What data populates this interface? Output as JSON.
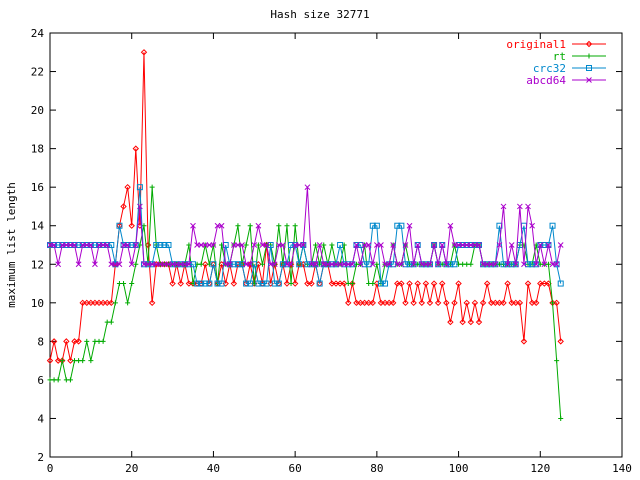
{
  "chart_data": {
    "type": "line",
    "title": "Hash size 32771",
    "xlabel": "",
    "ylabel": "maximum list length",
    "xlim": [
      0,
      140
    ],
    "ylim": [
      2,
      24
    ],
    "xticks": [
      0,
      20,
      40,
      60,
      80,
      100,
      120,
      140
    ],
    "yticks": [
      2,
      4,
      6,
      8,
      10,
      12,
      14,
      16,
      18,
      20,
      22,
      24
    ],
    "grid": false,
    "legend_position": "top-right",
    "x": [
      0,
      1,
      2,
      3,
      4,
      5,
      6,
      7,
      8,
      9,
      10,
      11,
      12,
      13,
      14,
      15,
      16,
      17,
      18,
      19,
      20,
      21,
      22,
      23,
      24,
      25,
      26,
      27,
      28,
      29,
      30,
      31,
      32,
      33,
      34,
      35,
      36,
      37,
      38,
      39,
      40,
      41,
      42,
      43,
      44,
      45,
      46,
      47,
      48,
      49,
      50,
      51,
      52,
      53,
      54,
      55,
      56,
      57,
      58,
      59,
      60,
      61,
      62,
      63,
      64,
      65,
      66,
      67,
      68,
      69,
      70,
      71,
      72,
      73,
      74,
      75,
      76,
      77,
      78,
      79,
      80,
      81,
      82,
      83,
      84,
      85,
      86,
      87,
      88,
      89,
      90,
      91,
      92,
      93,
      94,
      95,
      96,
      97,
      98,
      99,
      100,
      101,
      102,
      103,
      104,
      105,
      106,
      107,
      108,
      109,
      110,
      111,
      112,
      113,
      114,
      115,
      116,
      117,
      118,
      119,
      120,
      121,
      122,
      123,
      124,
      125
    ],
    "series": [
      {
        "name": "original1",
        "color": "#ff0000",
        "marker": "diamond",
        "values": [
          7,
          8,
          7,
          7,
          8,
          7,
          8,
          8,
          10,
          10,
          10,
          10,
          10,
          10,
          10,
          10,
          12,
          14,
          15,
          16,
          14,
          18,
          14,
          23,
          13,
          10,
          12,
          12,
          12,
          12,
          11,
          12,
          11,
          12,
          11,
          11,
          11,
          11,
          12,
          11,
          12,
          11,
          12,
          11,
          12,
          11,
          12,
          12,
          11,
          12,
          11,
          12,
          11,
          13,
          11,
          12,
          11,
          12,
          11,
          12,
          11,
          12,
          12,
          11,
          11,
          12,
          11,
          12,
          12,
          11,
          11,
          11,
          11,
          10,
          11,
          10,
          10,
          10,
          10,
          10,
          11,
          10,
          10,
          10,
          10,
          11,
          11,
          10,
          11,
          10,
          11,
          10,
          11,
          10,
          11,
          10,
          11,
          10,
          9,
          10,
          11,
          9,
          10,
          9,
          10,
          9,
          10,
          11,
          10,
          10,
          10,
          10,
          11,
          10,
          10,
          10,
          8,
          11,
          10,
          10,
          11,
          11,
          11,
          10,
          10,
          8
        ]
      },
      {
        "name": "rt",
        "color": "#00aa00",
        "marker": "plus",
        "values": [
          6,
          6,
          6,
          7,
          6,
          6,
          7,
          7,
          7,
          8,
          7,
          8,
          8,
          8,
          9,
          9,
          10,
          11,
          11,
          10,
          11,
          12,
          13,
          14,
          12,
          16,
          13,
          12,
          12,
          12,
          12,
          12,
          12,
          12,
          13,
          11,
          12,
          12,
          13,
          12,
          13,
          11,
          13,
          12,
          12,
          13,
          14,
          12,
          13,
          14,
          11,
          13,
          12,
          13,
          13,
          12,
          14,
          12,
          14,
          11,
          14,
          12,
          13,
          12,
          12,
          13,
          12,
          13,
          12,
          13,
          12,
          12,
          13,
          11,
          11,
          12,
          12,
          13,
          11,
          11,
          12,
          11,
          12,
          12,
          13,
          12,
          12,
          13,
          12,
          12,
          12,
          12,
          12,
          12,
          13,
          12,
          12,
          12,
          12,
          13,
          12,
          12,
          12,
          12,
          13,
          13,
          12,
          12,
          12,
          12,
          12,
          12,
          12,
          12,
          12,
          13,
          13,
          12,
          12,
          13,
          12,
          12,
          12,
          10,
          7,
          4
        ]
      },
      {
        "name": "crc32",
        "color": "#0088cc",
        "marker": "square",
        "values": [
          13,
          13,
          13,
          13,
          13,
          13,
          13,
          13,
          13,
          13,
          13,
          13,
          13,
          13,
          13,
          13,
          12,
          14,
          13,
          13,
          13,
          13,
          16,
          12,
          12,
          12,
          13,
          13,
          13,
          13,
          12,
          12,
          12,
          12,
          12,
          12,
          11,
          11,
          11,
          11,
          12,
          11,
          11,
          13,
          12,
          12,
          12,
          12,
          11,
          11,
          12,
          11,
          11,
          11,
          13,
          11,
          11,
          12,
          12,
          13,
          13,
          12,
          13,
          12,
          12,
          12,
          11,
          12,
          12,
          12,
          12,
          13,
          12,
          12,
          12,
          13,
          13,
          12,
          12,
          14,
          14,
          11,
          11,
          12,
          12,
          14,
          14,
          12,
          12,
          12,
          13,
          12,
          12,
          12,
          13,
          12,
          13,
          12,
          12,
          12,
          13,
          13,
          13,
          13,
          13,
          13,
          12,
          12,
          12,
          12,
          14,
          12,
          12,
          12,
          12,
          13,
          14,
          12,
          12,
          12,
          13,
          13,
          13,
          14,
          12,
          11
        ]
      },
      {
        "name": "abcd64",
        "color": "#aa00cc",
        "marker": "cross",
        "values": [
          13,
          13,
          12,
          13,
          13,
          13,
          13,
          12,
          13,
          13,
          13,
          12,
          13,
          13,
          13,
          12,
          12,
          12,
          13,
          13,
          12,
          13,
          15,
          12,
          12,
          12,
          12,
          12,
          12,
          12,
          12,
          12,
          12,
          12,
          12,
          14,
          13,
          13,
          13,
          13,
          13,
          14,
          14,
          12,
          12,
          13,
          13,
          13,
          12,
          12,
          13,
          14,
          13,
          13,
          12,
          12,
          13,
          13,
          12,
          12,
          13,
          13,
          13,
          16,
          12,
          12,
          13,
          12,
          12,
          12,
          12,
          12,
          12,
          12,
          12,
          13,
          12,
          13,
          13,
          12,
          13,
          13,
          12,
          12,
          13,
          12,
          12,
          13,
          14,
          12,
          13,
          12,
          12,
          12,
          13,
          12,
          13,
          12,
          14,
          13,
          13,
          13,
          13,
          13,
          13,
          13,
          12,
          12,
          12,
          12,
          13,
          15,
          12,
          13,
          12,
          15,
          12,
          15,
          14,
          12,
          13,
          12,
          13,
          12,
          12,
          13
        ]
      }
    ]
  }
}
